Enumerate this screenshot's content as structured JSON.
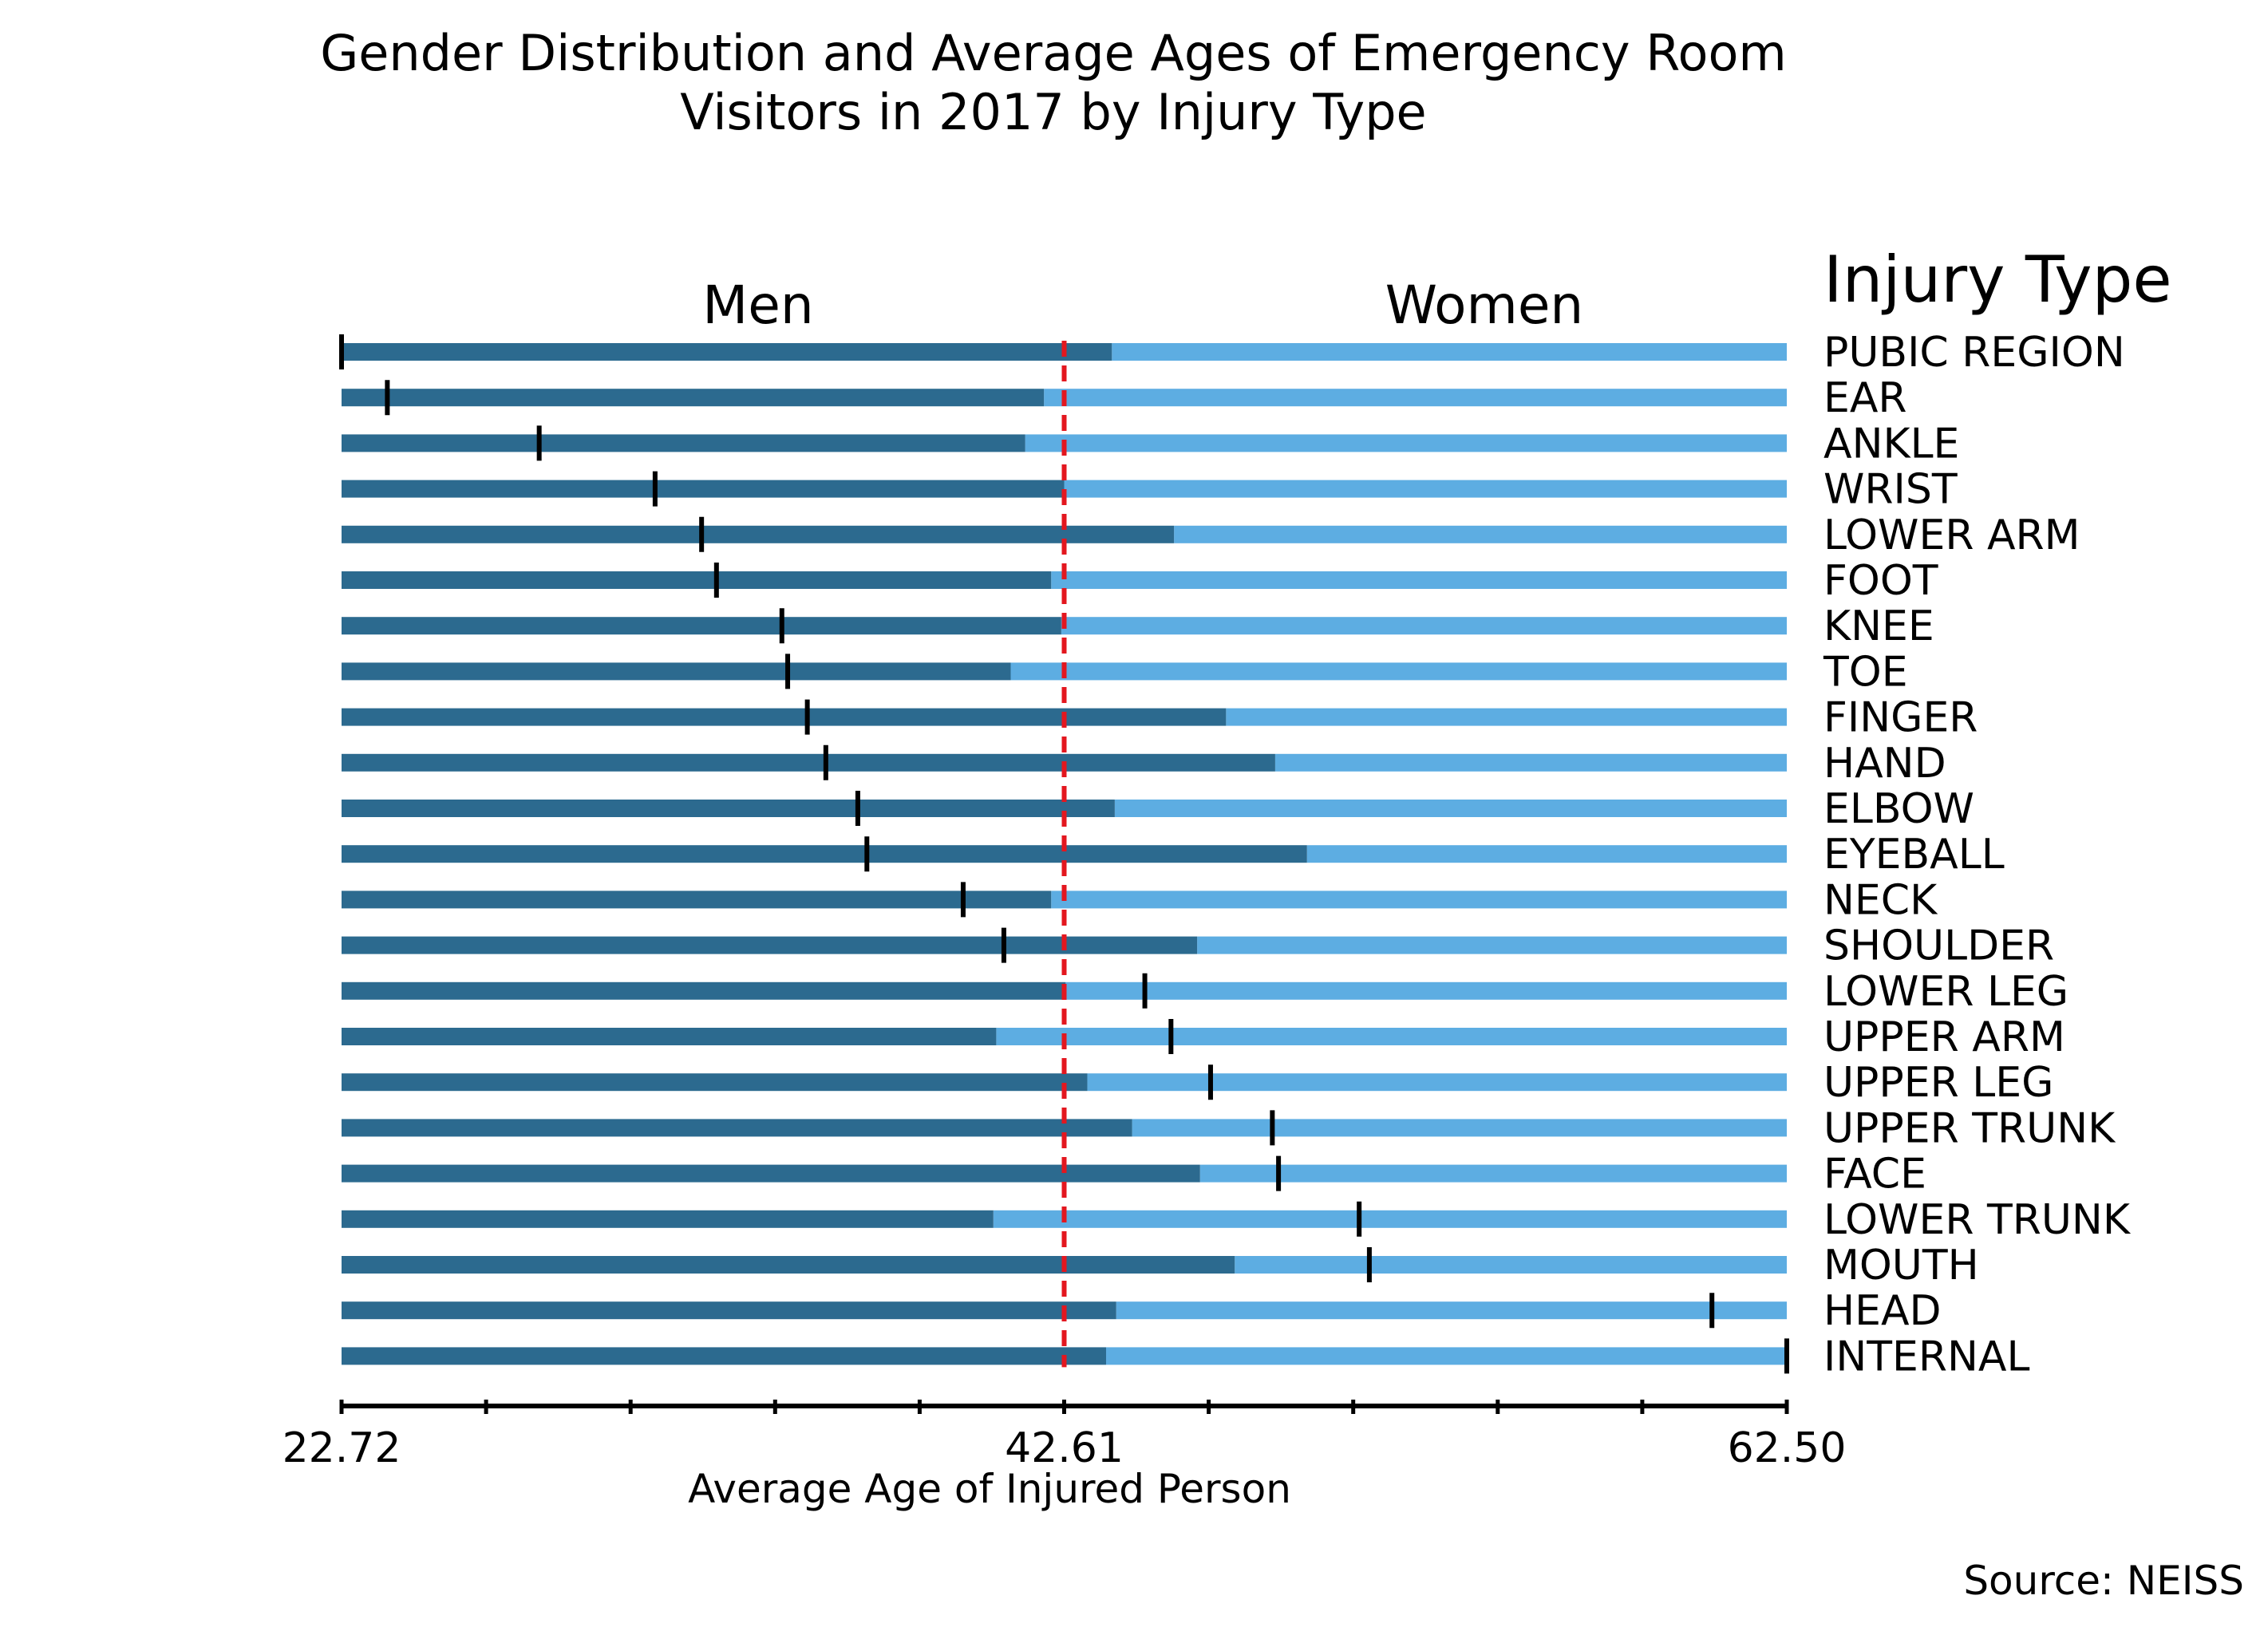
{
  "chart_data": {
    "type": "bar",
    "title": [
      "Gender Distribution and Average Ages of Emergency Room",
      "Visitors in 2017 by Injury Type"
    ],
    "group_labels": {
      "left": "Men",
      "right": "Women"
    },
    "legend_title": "Injury Type",
    "xlabel": "Average Age of Injured Person",
    "xlim": [
      22.72,
      62.5
    ],
    "tick_labels": [
      "22.72",
      "42.61",
      "62.50"
    ],
    "reference_line": 42.61,
    "source": "Source: NEISS",
    "colors": {
      "men": "#2c6a8f",
      "women": "#5dade2",
      "reference": "#e3171f",
      "marker": "#000000"
    },
    "categories": [
      "PUBIC REGION",
      "EAR",
      "ANKLE",
      "WRIST",
      "LOWER ARM",
      "FOOT",
      "KNEE",
      "TOE",
      "FINGER",
      "HAND",
      "ELBOW",
      "EYEBALL",
      "NECK",
      "SHOULDER",
      "LOWER LEG",
      "UPPER ARM",
      "UPPER LEG",
      "UPPER TRUNK",
      "FACE",
      "LOWER TRUNK",
      "MOUTH",
      "HEAD",
      "INTERNAL"
    ],
    "men_share": [
      0.533,
      0.486,
      0.473,
      0.5,
      0.576,
      0.491,
      0.498,
      0.463,
      0.612,
      0.646,
      0.535,
      0.668,
      0.491,
      0.592,
      0.501,
      0.453,
      0.516,
      0.547,
      0.594,
      0.451,
      0.618,
      0.536,
      0.529
    ],
    "average_age": [
      22.72,
      23.98,
      28.16,
      31.35,
      32.63,
      33.04,
      34.84,
      35.0,
      35.54,
      36.05,
      36.93,
      37.18,
      39.83,
      40.95,
      44.83,
      45.55,
      46.64,
      48.34,
      48.51,
      50.73,
      51.01,
      60.44,
      62.5
    ]
  }
}
